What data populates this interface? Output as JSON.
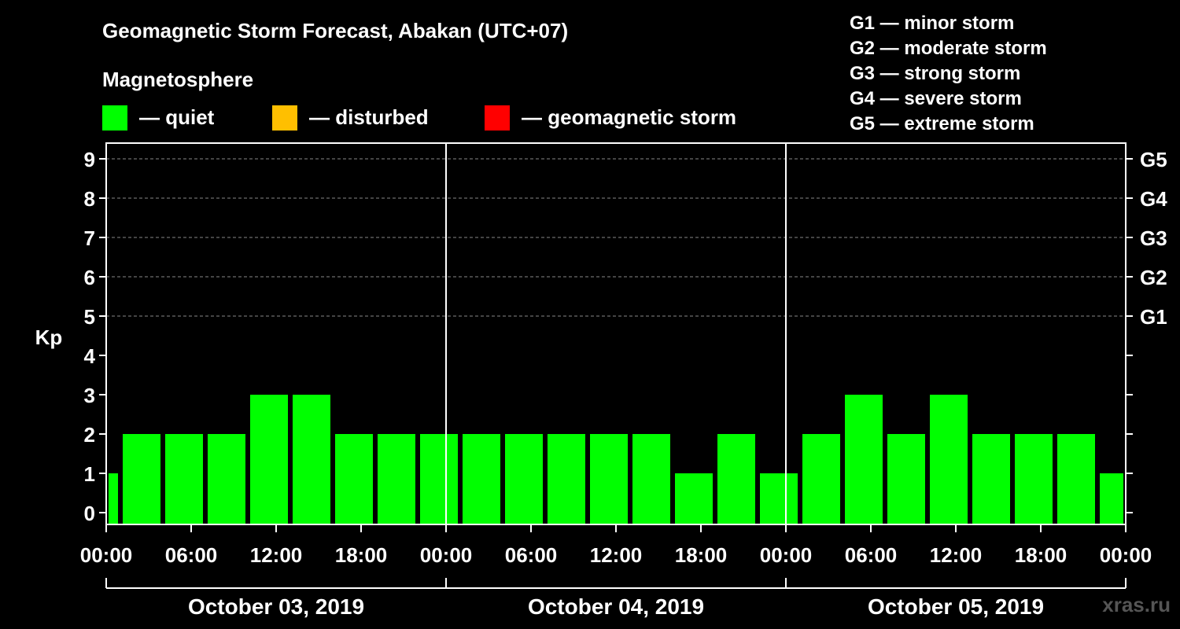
{
  "header": {
    "title": "Geomagnetic Storm Forecast, Abakan (UTC+07)",
    "magnetosphere_title": "Magnetosphere"
  },
  "legend": [
    {
      "label": "— quiet",
      "color": "#00ff00"
    },
    {
      "label": "— disturbed",
      "color": "#ffbf00"
    },
    {
      "label": "— geomagnetic storm",
      "color": "#ff0000"
    }
  ],
  "storm_scale": [
    "G1 — minor storm",
    "G2 — moderate storm",
    "G3 — strong storm",
    "G4 — severe storm",
    "G5 — extreme storm"
  ],
  "watermark": "xras.ru",
  "chart_data": {
    "type": "bar",
    "ylabel": "Kp",
    "ylim": [
      0,
      9
    ],
    "y_ticks": [
      "0",
      "1",
      "2",
      "3",
      "4",
      "5",
      "6",
      "7",
      "8",
      "9"
    ],
    "right_ticks": [
      {
        "kp": 5,
        "label": "G1"
      },
      {
        "kp": 6,
        "label": "G2"
      },
      {
        "kp": 7,
        "label": "G3"
      },
      {
        "kp": 8,
        "label": "G4"
      },
      {
        "kp": 9,
        "label": "G5"
      }
    ],
    "grid": "dashed horizontal at Kp 5–9",
    "x_tick_labels": [
      "00:00",
      "06:00",
      "12:00",
      "18:00",
      "00:00",
      "06:00",
      "12:00",
      "18:00",
      "00:00",
      "06:00",
      "12:00",
      "18:00",
      "00:00"
    ],
    "days": [
      "October 03, 2019",
      "October 04, 2019",
      "October 05, 2019"
    ],
    "bars": [
      {
        "start_hour": 0,
        "end_hour": 1,
        "kp": 1
      },
      {
        "start_hour": 1,
        "end_hour": 4,
        "kp": 2
      },
      {
        "start_hour": 4,
        "end_hour": 7,
        "kp": 2
      },
      {
        "start_hour": 7,
        "end_hour": 10,
        "kp": 2
      },
      {
        "start_hour": 10,
        "end_hour": 13,
        "kp": 3
      },
      {
        "start_hour": 13,
        "end_hour": 16,
        "kp": 3
      },
      {
        "start_hour": 16,
        "end_hour": 19,
        "kp": 2
      },
      {
        "start_hour": 19,
        "end_hour": 22,
        "kp": 2
      },
      {
        "start_hour": 22,
        "end_hour": 25,
        "kp": 2
      },
      {
        "start_hour": 25,
        "end_hour": 28,
        "kp": 2
      },
      {
        "start_hour": 28,
        "end_hour": 31,
        "kp": 2
      },
      {
        "start_hour": 31,
        "end_hour": 34,
        "kp": 2
      },
      {
        "start_hour": 34,
        "end_hour": 37,
        "kp": 2
      },
      {
        "start_hour": 37,
        "end_hour": 40,
        "kp": 2
      },
      {
        "start_hour": 40,
        "end_hour": 43,
        "kp": 1
      },
      {
        "start_hour": 43,
        "end_hour": 46,
        "kp": 2
      },
      {
        "start_hour": 46,
        "end_hour": 49,
        "kp": 1
      },
      {
        "start_hour": 49,
        "end_hour": 52,
        "kp": 2
      },
      {
        "start_hour": 52,
        "end_hour": 55,
        "kp": 3
      },
      {
        "start_hour": 55,
        "end_hour": 58,
        "kp": 2
      },
      {
        "start_hour": 58,
        "end_hour": 61,
        "kp": 3
      },
      {
        "start_hour": 61,
        "end_hour": 64,
        "kp": 2
      },
      {
        "start_hour": 64,
        "end_hour": 67,
        "kp": 2
      },
      {
        "start_hour": 67,
        "end_hour": 70,
        "kp": 2
      },
      {
        "start_hour": 70,
        "end_hour": 72,
        "kp": 1
      }
    ],
    "bar_color": "#00ff00"
  }
}
